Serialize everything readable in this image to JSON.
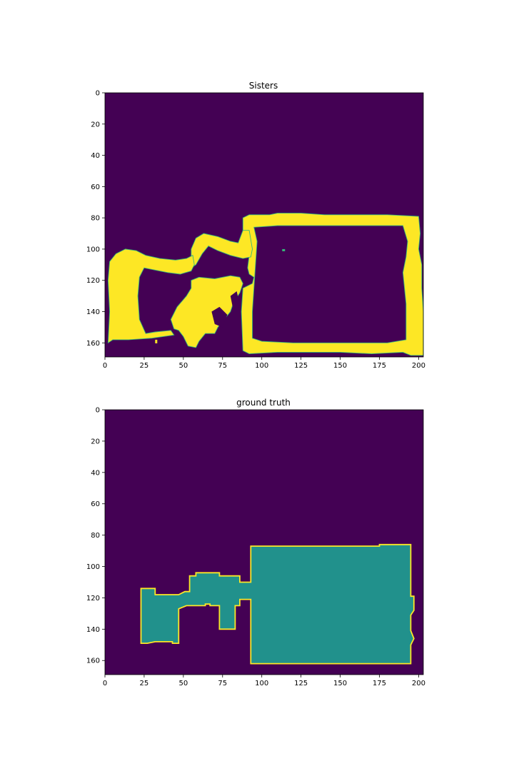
{
  "chart_data": [
    {
      "type": "heatmap",
      "title": "Sisters",
      "xlabel": "",
      "ylabel": "",
      "xlim": [
        0,
        203
      ],
      "ylim": [
        169,
        0
      ],
      "xticks": [
        "0",
        "25",
        "50",
        "75",
        "100",
        "125",
        "150",
        "175",
        "200"
      ],
      "yticks": [
        "0",
        "20",
        "40",
        "60",
        "80",
        "100",
        "120",
        "140",
        "160"
      ],
      "colormap": "viridis",
      "background_color": "#440154",
      "fill_color": "#fde725",
      "edge_color": "#35b779",
      "grid": false,
      "legend": false
    },
    {
      "type": "heatmap",
      "title": "ground truth",
      "xlabel": "",
      "ylabel": "",
      "xlim": [
        0,
        203
      ],
      "ylim": [
        169,
        0
      ],
      "xticks": [
        "0",
        "25",
        "50",
        "75",
        "100",
        "125",
        "150",
        "175",
        "200"
      ],
      "yticks": [
        "0",
        "20",
        "40",
        "60",
        "80",
        "100",
        "120",
        "140",
        "160"
      ],
      "colormap": "viridis",
      "background_color": "#440154",
      "fill_color": "#21918c",
      "outline_color": "#fde725",
      "grid": false,
      "legend": false,
      "region_outline": [
        [
          23,
          114
        ],
        [
          32,
          114
        ],
        [
          32,
          118
        ],
        [
          47,
          118
        ],
        [
          51,
          116
        ],
        [
          54,
          116
        ],
        [
          54,
          106
        ],
        [
          58,
          106
        ],
        [
          58,
          104
        ],
        [
          73,
          104
        ],
        [
          73,
          106
        ],
        [
          86,
          106
        ],
        [
          86,
          110
        ],
        [
          93,
          110
        ],
        [
          93,
          87
        ],
        [
          175,
          87
        ],
        [
          175,
          86
        ],
        [
          195,
          86
        ],
        [
          195,
          119
        ],
        [
          197,
          119
        ],
        [
          197,
          128
        ],
        [
          195,
          131
        ],
        [
          195,
          141
        ],
        [
          197,
          146
        ],
        [
          195,
          150
        ],
        [
          195,
          162
        ],
        [
          93,
          162
        ],
        [
          93,
          121
        ],
        [
          86,
          121
        ],
        [
          86,
          125
        ],
        [
          83,
          125
        ],
        [
          83,
          140
        ],
        [
          73,
          140
        ],
        [
          73,
          127
        ],
        [
          73,
          125
        ],
        [
          67,
          125
        ],
        [
          67,
          124
        ],
        [
          64,
          124
        ],
        [
          64,
          125
        ],
        [
          52,
          125
        ],
        [
          47,
          127
        ],
        [
          47,
          149
        ],
        [
          43,
          149
        ],
        [
          43,
          148
        ],
        [
          32,
          148
        ],
        [
          27,
          149
        ],
        [
          23,
          149
        ]
      ]
    }
  ]
}
